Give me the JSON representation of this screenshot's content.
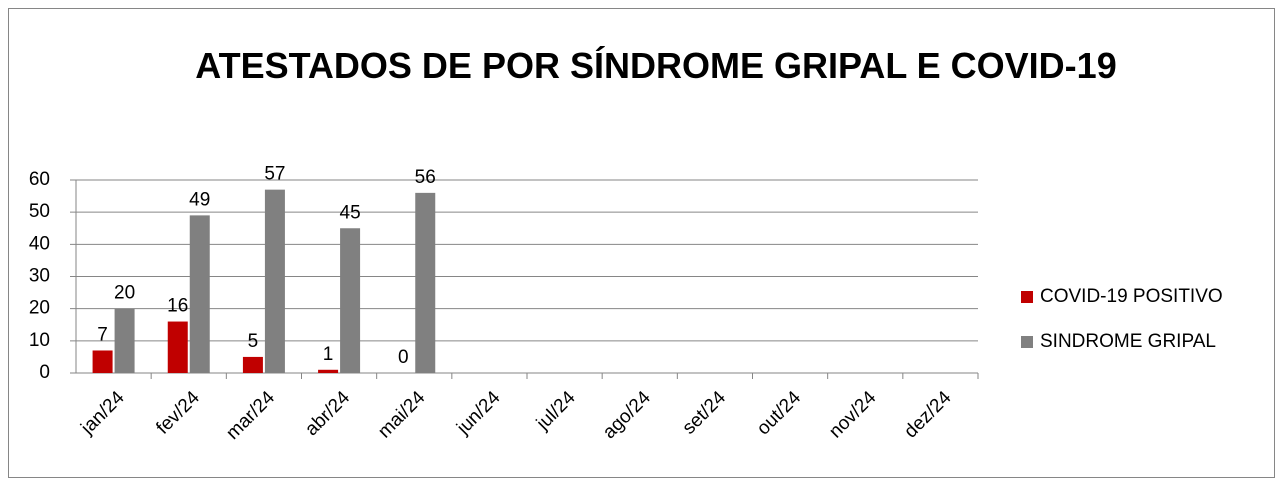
{
  "chart_data": {
    "type": "bar",
    "title": "ATESTADOS DE POR SÍNDROME GRIPAL E COVID-19",
    "categories": [
      "jan/24",
      "fev/24",
      "mar/24",
      "abr/24",
      "mai/24",
      "jun/24",
      "jul/24",
      "ago/24",
      "set/24",
      "out/24",
      "nov/24",
      "dez/24"
    ],
    "series": [
      {
        "name": "COVID-19 POSITIVO",
        "color": "#c00000",
        "values": [
          7,
          16,
          5,
          1,
          0,
          null,
          null,
          null,
          null,
          null,
          null,
          null
        ]
      },
      {
        "name": "SINDROME GRIPAL",
        "color": "#808080",
        "values": [
          20,
          49,
          57,
          45,
          56,
          null,
          null,
          null,
          null,
          null,
          null,
          null
        ]
      }
    ],
    "ylim": [
      0,
      60
    ],
    "yticks": [
      0,
      10,
      20,
      30,
      40,
      50,
      60
    ],
    "grid": true,
    "legend": "right"
  }
}
